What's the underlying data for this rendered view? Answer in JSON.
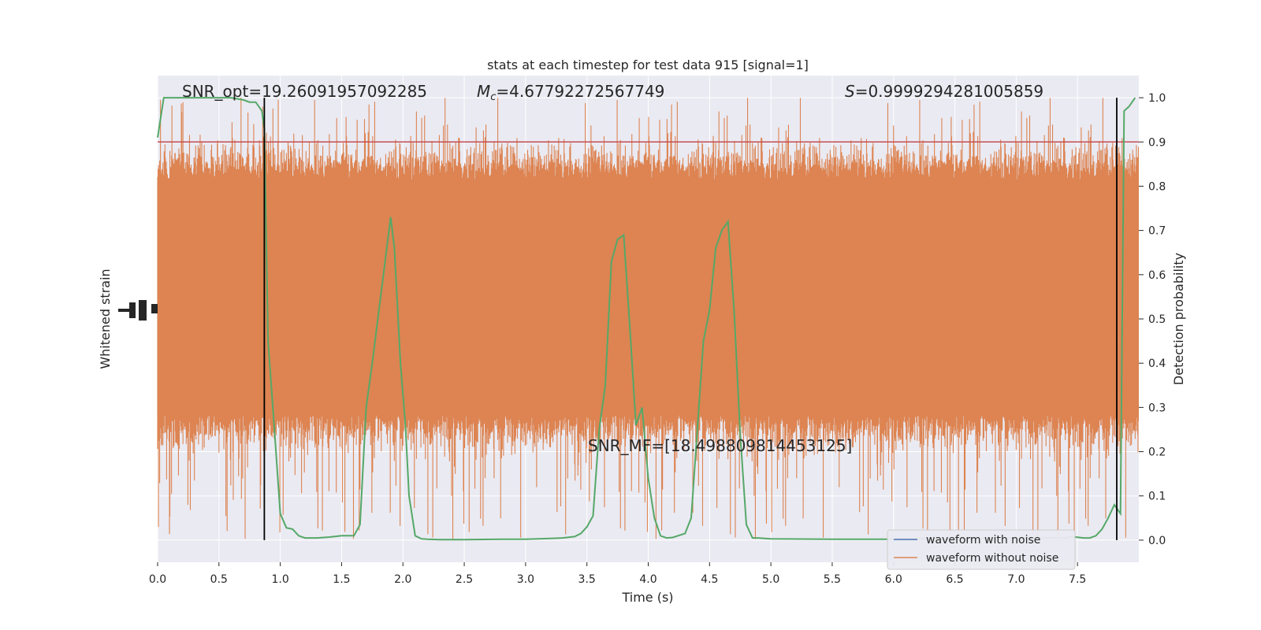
{
  "chart_data": {
    "type": "line",
    "title": "stats at each timestep for test data 915 [signal=1]",
    "xlabel": "Time (s)",
    "ylabel_left": "Whitened strain",
    "ylabel_right": "Detection probability",
    "xlim": [
      0.0,
      8.0
    ],
    "ylim_right": [
      -0.05,
      1.05
    ],
    "xticks": [
      "0.0",
      "0.5",
      "1.0",
      "1.5",
      "2.0",
      "2.5",
      "3.0",
      "3.5",
      "4.0",
      "4.5",
      "5.0",
      "5.5",
      "6.0",
      "6.5",
      "7.0",
      "7.5"
    ],
    "yticks_right": [
      "0.0",
      "0.1",
      "0.2",
      "0.3",
      "0.4",
      "0.5",
      "0.6",
      "0.7",
      "0.8",
      "0.9",
      "1.0"
    ],
    "grid": true,
    "legend_placement": "lower-right",
    "legend": [
      "waveform with noise",
      "waveform without noise"
    ],
    "annotations": {
      "snr_opt": "SNR_opt=19.26091957092285",
      "mc_symbol": "M",
      "mc_sub": "c",
      "mc_value": "=4.67792272567749",
      "s_symbol": "S",
      "s_value": "=0.9999294281005859",
      "snr_mf": "SNR_MF=[18.498809814453125]"
    },
    "threshold": 0.9,
    "vlines": [
      0.87,
      7.82
    ],
    "series": [
      {
        "name": "waveform with noise",
        "color": "#4c72b0",
        "envelope": [
          0.285,
          0.815
        ],
        "peak_range": [
          0.0,
          1.0
        ]
      },
      {
        "name": "waveform without noise",
        "color": "#dd8452",
        "envelope": [
          0.285,
          0.815
        ],
        "peak_range": [
          0.0,
          1.0
        ]
      },
      {
        "name": "",
        "color": "#55a868",
        "x": [
          0.0,
          0.05,
          0.1,
          0.2,
          0.3,
          0.4,
          0.5,
          0.6,
          0.7,
          0.75,
          0.8,
          0.85,
          0.87,
          0.9,
          0.95,
          1.0,
          1.05,
          1.1,
          1.15,
          1.2,
          1.25,
          1.3,
          1.4,
          1.5,
          1.6,
          1.65,
          1.7,
          1.75,
          1.8,
          1.85,
          1.9,
          1.93,
          1.98,
          2.02,
          2.05,
          2.1,
          2.15,
          2.2,
          2.3,
          2.5,
          2.8,
          3.0,
          3.2,
          3.3,
          3.4,
          3.45,
          3.5,
          3.55,
          3.6,
          3.65,
          3.7,
          3.75,
          3.8,
          3.85,
          3.9,
          3.95,
          4.0,
          4.05,
          4.1,
          4.15,
          4.2,
          4.3,
          4.35,
          4.4,
          4.45,
          4.5,
          4.55,
          4.6,
          4.65,
          4.7,
          4.75,
          4.8,
          4.85,
          4.9,
          4.95,
          5.0,
          5.5,
          6.0,
          6.5,
          7.0,
          7.4,
          7.45,
          7.55,
          7.6,
          7.65,
          7.7,
          7.75,
          7.8,
          7.85,
          7.88,
          7.92,
          7.97
        ],
        "y": [
          0.91,
          1.0,
          1.0,
          1.0,
          1.0,
          1.0,
          1.0,
          1.0,
          0.995,
          0.99,
          0.99,
          0.97,
          0.93,
          0.45,
          0.26,
          0.06,
          0.028,
          0.025,
          0.01,
          0.005,
          0.005,
          0.005,
          0.007,
          0.01,
          0.01,
          0.035,
          0.3,
          0.4,
          0.51,
          0.62,
          0.73,
          0.66,
          0.4,
          0.26,
          0.1,
          0.01,
          0.003,
          0.002,
          0.001,
          0.001,
          0.002,
          0.002,
          0.004,
          0.005,
          0.008,
          0.015,
          0.03,
          0.055,
          0.25,
          0.35,
          0.63,
          0.68,
          0.69,
          0.48,
          0.26,
          0.3,
          0.14,
          0.05,
          0.01,
          0.005,
          0.006,
          0.015,
          0.05,
          0.25,
          0.45,
          0.52,
          0.66,
          0.7,
          0.72,
          0.52,
          0.24,
          0.035,
          0.005,
          0.005,
          0.004,
          0.003,
          0.002,
          0.002,
          0.004,
          0.005,
          0.005,
          0.008,
          0.005,
          0.005,
          0.01,
          0.025,
          0.05,
          0.08,
          0.06,
          0.97,
          0.98,
          1.0
        ]
      }
    ]
  }
}
